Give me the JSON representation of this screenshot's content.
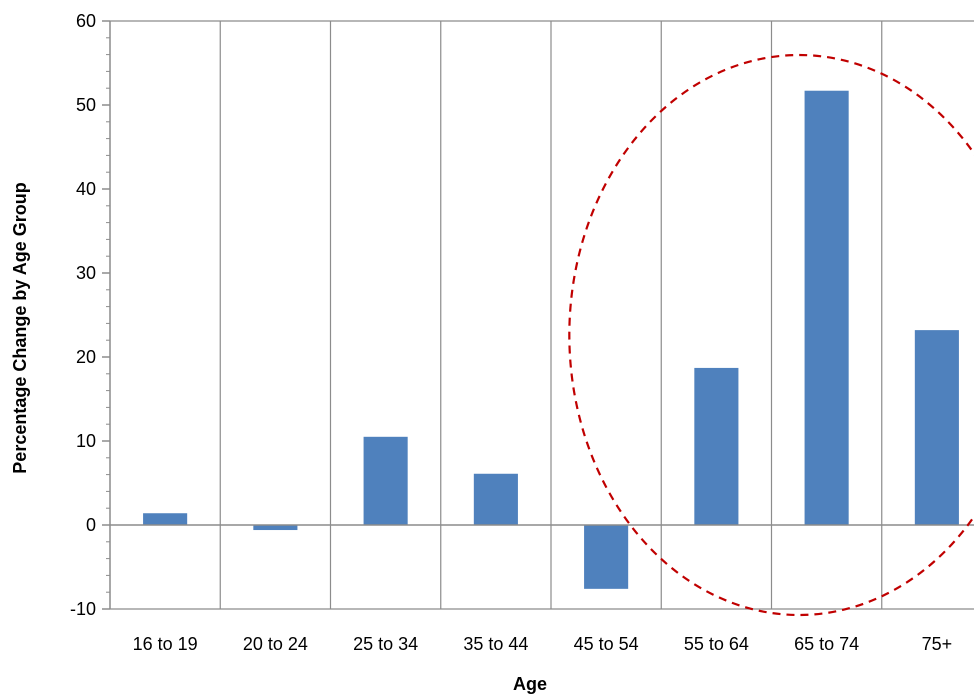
{
  "chart_data": {
    "type": "bar",
    "title": "",
    "xlabel": "Age",
    "ylabel": "Percentage Change by Age Group",
    "categories": [
      "16 to 19",
      "20 to 24",
      "25 to 34",
      "35 to 44",
      "45 to 54",
      "55 to 64",
      "65 to 74",
      "75+"
    ],
    "values": [
      1.4,
      -0.6,
      10.5,
      6.1,
      -7.6,
      18.7,
      51.7,
      23.2
    ],
    "ylim": [
      -10,
      60
    ],
    "yticks": [
      -10,
      0,
      10,
      20,
      30,
      40,
      50,
      60
    ],
    "grid": "vertical",
    "legend": "none",
    "bar_color": "#4F81BD",
    "annotation": {
      "shape": "dashed-ellipse",
      "color": "#C00000",
      "highlights": [
        "55 to 64",
        "65 to 74",
        "75+"
      ]
    }
  }
}
